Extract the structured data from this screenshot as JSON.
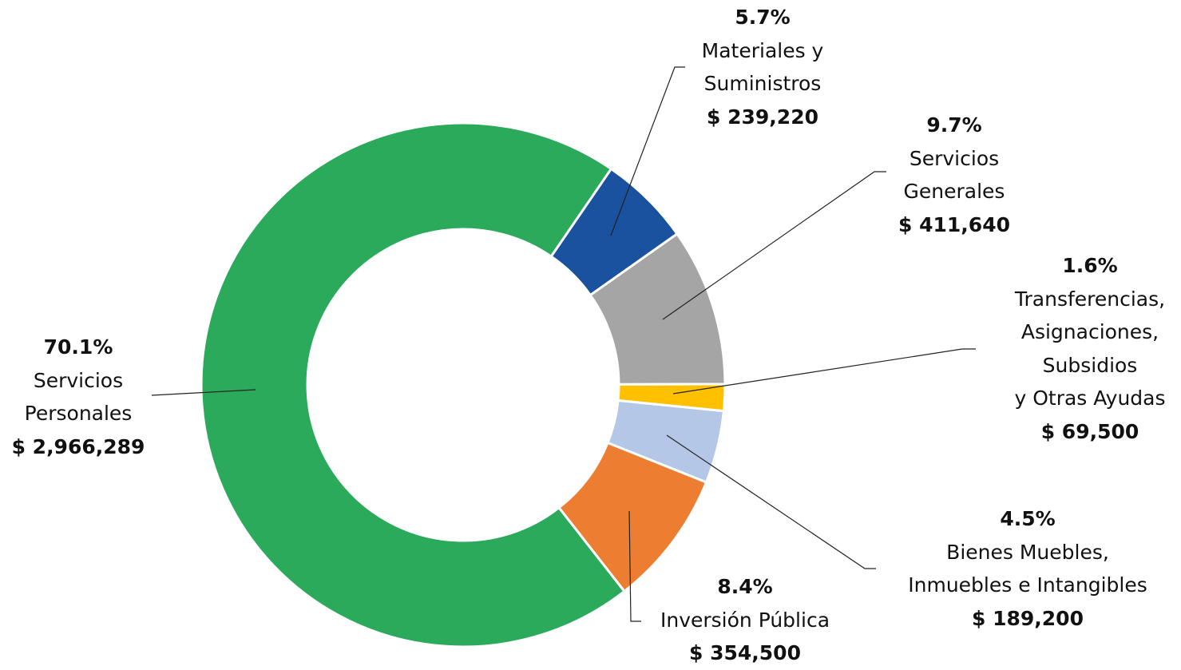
{
  "chart_data": {
    "type": "donut",
    "categories": [
      "Servicios\nPersonales",
      "Materiales y\nSuministros",
      "Servicios\nGenerales",
      "Transferencias,\nAsignaciones,\nSubsidios\ny Otras Ayudas",
      "Bienes Muebles,\nInmuebles e Intangibles",
      "Inversión Pública"
    ],
    "values": [
      2966289,
      239220,
      411640,
      69500,
      189200,
      354500
    ],
    "value_labels": [
      "$ 2,966,289",
      "$ 239,220",
      "$ 411,640",
      "$ 69,500",
      "$ 189,200",
      "$ 354,500"
    ],
    "shares": [
      "70.1%",
      "5.7%",
      "9.7%",
      "1.6%",
      "4.5%",
      "8.4%"
    ],
    "colors": [
      "#2aaa5a",
      "#1a52a0",
      "#a5a5a5",
      "#ffc000",
      "#b4c7e7",
      "#ed7d31"
    ]
  }
}
